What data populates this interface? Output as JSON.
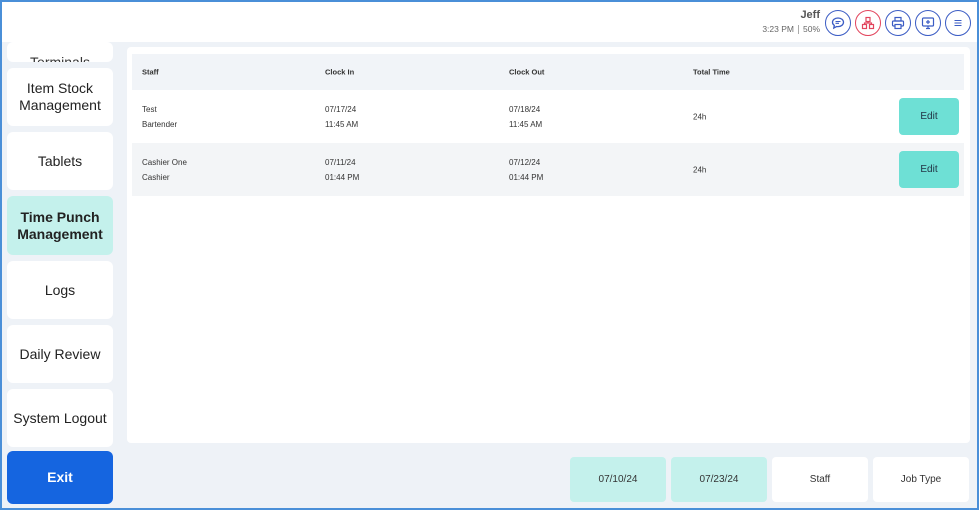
{
  "header": {
    "user": "Jeff",
    "time": "3:23 PM",
    "battery": "50%",
    "icons": [
      "chat-icon",
      "network-icon",
      "printer-icon",
      "monitor-icon",
      "menu-icon"
    ]
  },
  "sidebar": {
    "items": [
      {
        "label": "Terminals"
      },
      {
        "label": "Item Stock Management"
      },
      {
        "label": "Tablets"
      },
      {
        "label": "Time Punch Management",
        "active": true
      },
      {
        "label": "Logs"
      },
      {
        "label": "Daily Review"
      },
      {
        "label": "System Logout"
      },
      {
        "label": "Exit"
      }
    ]
  },
  "table": {
    "columns": [
      "Staff",
      "Clock In",
      "Clock Out",
      "Total Time"
    ],
    "edit_label": "Edit",
    "rows": [
      {
        "name": "Test",
        "role": "Bartender",
        "in_date": "07/17/24",
        "in_time": "11:45 AM",
        "out_date": "07/18/24",
        "out_time": "11:45 AM",
        "total": "24h"
      },
      {
        "name": "Cashier One",
        "role": "Cashier",
        "in_date": "07/11/24",
        "in_time": "01:44 PM",
        "out_date": "07/12/24",
        "out_time": "01:44 PM",
        "total": "24h"
      }
    ]
  },
  "filters": {
    "start_date": "07/10/24",
    "end_date": "07/23/24",
    "staff": "Staff",
    "job_type": "Job Type"
  },
  "colors": {
    "accent": "#c4f1ec",
    "edit": "#6ee0d5",
    "exit": "#1565e0",
    "icon_border": "#3b5cc4",
    "alert": "#e2445c"
  }
}
